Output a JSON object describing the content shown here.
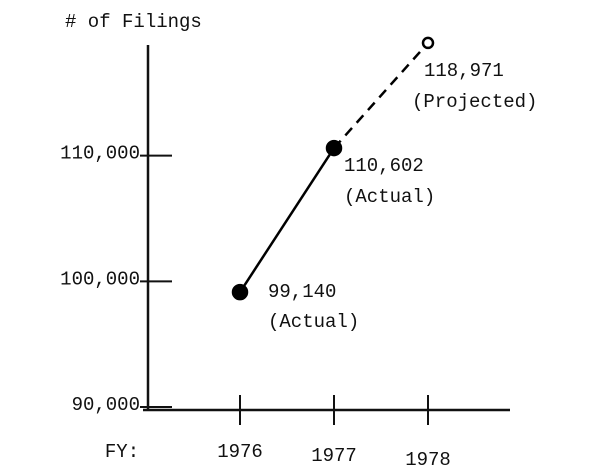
{
  "chart_data": {
    "type": "line",
    "title": "# of Filings",
    "x_label": "FY:",
    "categories": [
      "1976",
      "1977",
      "1978"
    ],
    "series": [
      {
        "color": "#000000",
        "values": [
          99140,
          110602,
          118971
        ],
        "value_labels": [
          "99,140",
          "110,602",
          "118,971"
        ],
        "point_notes": [
          "(Actual)",
          "(Actual)",
          "(Projected)"
        ],
        "projected": [
          false,
          false,
          true
        ]
      }
    ],
    "ylim": [
      90000,
      120000
    ],
    "yticks": [
      {
        "value": 90000,
        "label": "90,000"
      },
      {
        "value": 100000,
        "label": "100,000"
      },
      {
        "value": 110000,
        "label": "110,000"
      }
    ],
    "grid": false
  }
}
